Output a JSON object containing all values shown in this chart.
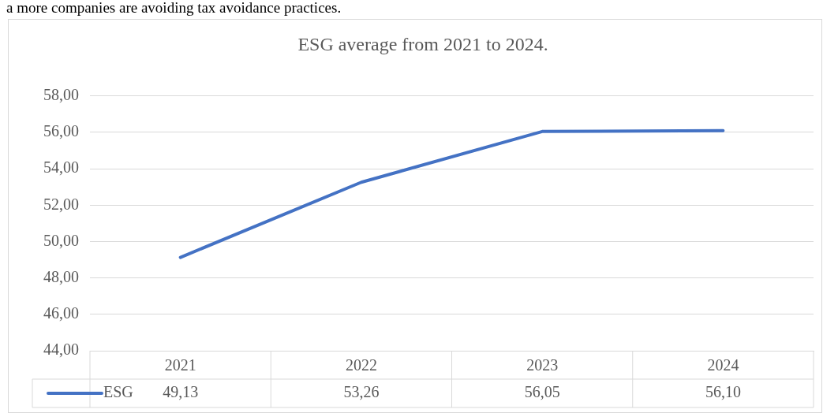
{
  "chart_data": {
    "type": "line",
    "title": "ESG average from 2021 to 2024.",
    "annotations": [
      "a more companies are avoiding tax avoidance practices."
    ],
    "categories": [
      "2021",
      "2022",
      "2023",
      "2024"
    ],
    "series": [
      {
        "name": "ESG",
        "color": "#4472c4",
        "values": [
          49.13,
          53.26,
          56.05,
          56.1
        ],
        "value_labels": [
          "49,13",
          "53,26",
          "56,05",
          "56,10"
        ]
      }
    ],
    "ylim": [
      44,
      58
    ],
    "yticks": [
      {
        "value": 44,
        "label": "44,00"
      },
      {
        "value": 46,
        "label": "46,00"
      },
      {
        "value": 48,
        "label": "48,00"
      },
      {
        "value": 50,
        "label": "50,00"
      },
      {
        "value": 52,
        "label": "52,00"
      },
      {
        "value": 54,
        "label": "54,00"
      },
      {
        "value": 56,
        "label": "56,00"
      },
      {
        "value": 58,
        "label": "58,00"
      }
    ],
    "grid": "y",
    "legend": "bottom",
    "marker": "none",
    "line_style": "solid"
  }
}
